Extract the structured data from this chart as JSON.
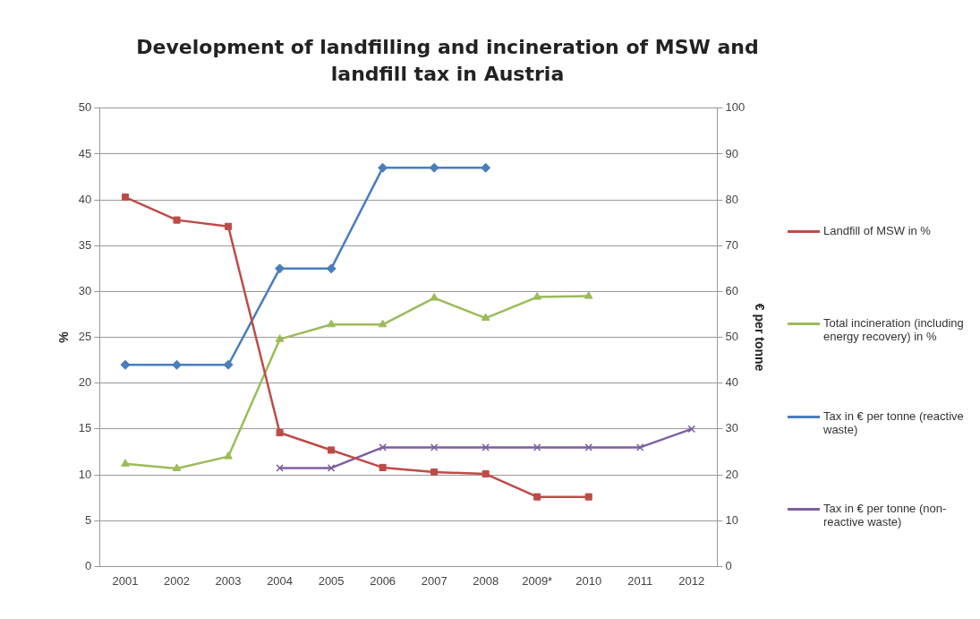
{
  "chart_data": {
    "type": "line",
    "title": "Development of landfilling and incineration of MSW and landfill tax in Austria",
    "categories": [
      "2001",
      "2002",
      "2003",
      "2004",
      "2005",
      "2006",
      "2007",
      "2008",
      "2009*",
      "2010",
      "2011",
      "2012"
    ],
    "ylabel": "%",
    "y2label": "€ per tonne",
    "ylim": [
      0,
      50
    ],
    "yticks": [
      0,
      5,
      10,
      15,
      20,
      25,
      30,
      35,
      40,
      45,
      50
    ],
    "y2lim": [
      0,
      100
    ],
    "y2ticks": [
      0,
      10,
      20,
      30,
      40,
      50,
      60,
      70,
      80,
      90,
      100
    ],
    "grid": "y",
    "legend": "right",
    "series": [
      {
        "name": "Landfill of MSW in %",
        "color": "#be4b48",
        "marker": "square",
        "values": [
          40.3,
          37.8,
          37.1,
          14.6,
          12.7,
          10.8,
          10.3,
          10.1,
          7.6,
          7.6,
          null,
          null
        ]
      },
      {
        "name": "Total incineration (including energy recovery) in %",
        "color": "#9bbb59",
        "marker": "triangle",
        "values": [
          11.2,
          10.7,
          12.0,
          24.8,
          26.4,
          26.4,
          29.3,
          27.1,
          29.4,
          29.5,
          null,
          null
        ]
      },
      {
        "name": "Tax in € per tonne (reactive waste)",
        "color": "#4a7ebb",
        "marker": "diamond",
        "axis": "y2",
        "values": [
          44,
          44,
          44,
          65,
          65,
          87,
          87,
          87,
          null,
          null,
          null,
          null
        ]
      },
      {
        "name": "Tax in € per tonne (non-reactive waste)",
        "color": "#7d60a0",
        "marker": "cross",
        "axis": "y2",
        "values": [
          null,
          null,
          null,
          21.5,
          21.5,
          26,
          26,
          26,
          26,
          26,
          26,
          30
        ]
      }
    ]
  }
}
